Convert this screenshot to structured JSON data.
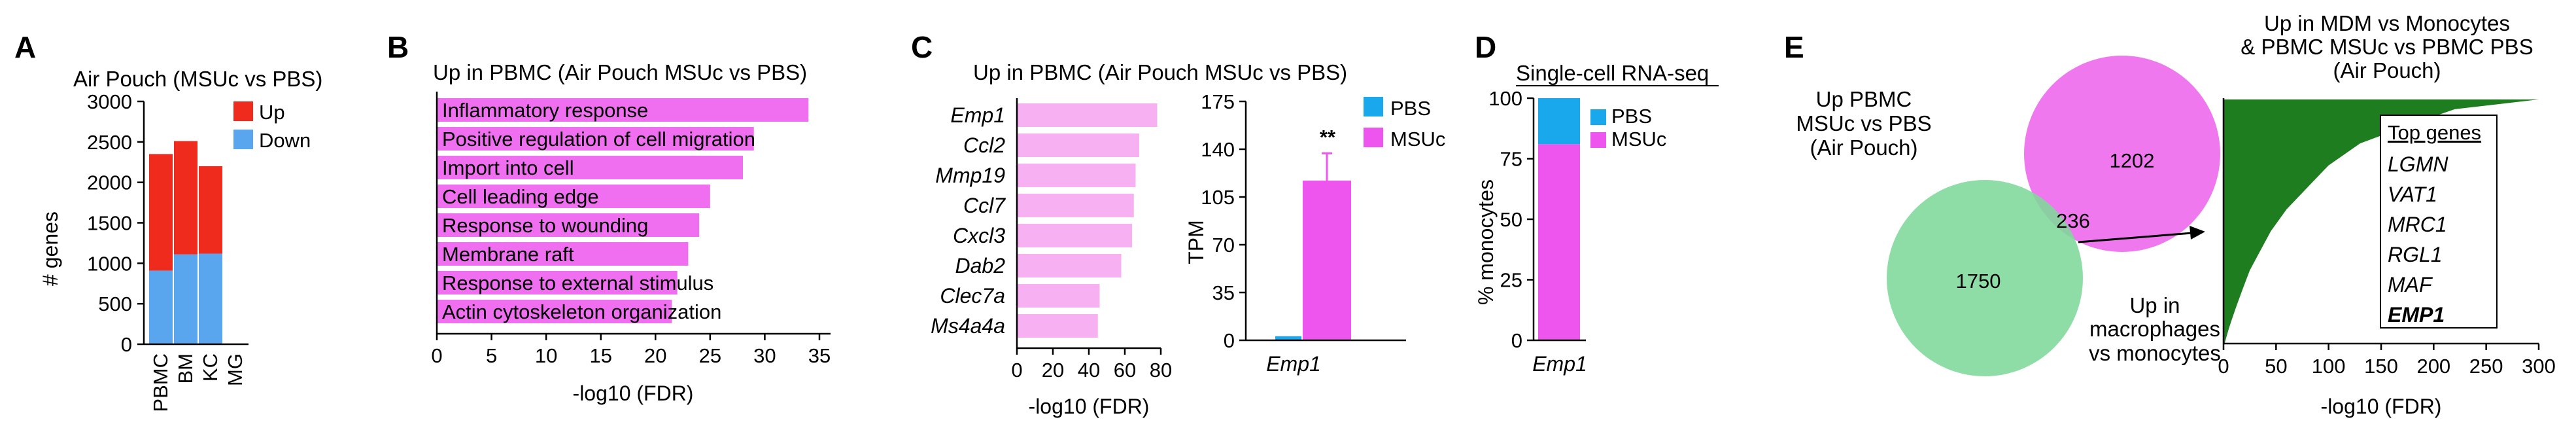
{
  "colors": {
    "up": "#ef2b1e",
    "down": "#5aa6ee",
    "go_bar": "#f06ef0",
    "gene_bar": "#f7b1f2",
    "pbs": "#1aa8ec",
    "msuc": "#ee55ee",
    "venn_green": "#7fd89a",
    "venn_pink": "#ef78ef",
    "area_green": "#1e7d1e"
  },
  "panels": {
    "A": {
      "letter": "A",
      "chart_data": {
        "type": "bar",
        "stacked": true,
        "title": "Air Pouch (MSUc vs PBS)",
        "ylabel": "# genes",
        "xlabel": "",
        "categories": [
          "PBMC",
          "BM",
          "KC",
          "MG"
        ],
        "series": [
          {
            "name": "Down",
            "values": [
              910,
              1110,
              1120,
              0
            ]
          },
          {
            "name": "Up",
            "values": [
              1440,
              1400,
              1080,
              0
            ]
          }
        ],
        "ylim": [
          0,
          3000
        ],
        "yticks": [
          "0",
          "500",
          "1000",
          "1500",
          "2000",
          "2500",
          "3000"
        ],
        "legend": [
          "Up",
          "Down"
        ]
      }
    },
    "B": {
      "letter": "B",
      "chart_data": {
        "type": "bar",
        "orientation": "horizontal",
        "title": "Up in PBMC (Air Pouch MSUc vs PBS)",
        "xlabel": "-log10 (FDR)",
        "categories": [
          "Inflammatory response",
          "Positive regulation of cell migration",
          "Import into cell",
          "Cell leading edge",
          "Response to wounding",
          "Membrane raft",
          "Response to external stimulus",
          "Actin cytoskeleton organization"
        ],
        "values": [
          34,
          29,
          28,
          25,
          24,
          23,
          22,
          21.5
        ],
        "xlim": [
          0,
          35
        ],
        "xticks": [
          "0",
          "5",
          "10",
          "15",
          "20",
          "25",
          "30",
          "35"
        ]
      }
    },
    "C": {
      "letter": "C",
      "title": "Up in PBMC (Air Pouch MSUc vs PBS)",
      "chart_data": [
        {
          "type": "bar",
          "orientation": "horizontal",
          "xlabel": "-log10 (FDR)",
          "categories": [
            "Emp1",
            "Ccl2",
            "Mmp19",
            "Ccl7",
            "Cxcl3",
            "Dab2",
            "Clec7a",
            "Ms4a4a"
          ],
          "values": [
            78,
            68,
            66,
            65,
            64,
            58,
            46,
            45
          ],
          "xlim": [
            0,
            80
          ],
          "xticks": [
            "0",
            "20",
            "40",
            "60",
            "80"
          ]
        },
        {
          "type": "bar",
          "ylabel": "TPM",
          "categories": [
            "Emp1"
          ],
          "series": [
            {
              "name": "PBS",
              "values": [
                3
              ]
            },
            {
              "name": "MSUc",
              "values": [
                117
              ],
              "error": 20
            }
          ],
          "ylim": [
            0,
            175
          ],
          "yticks": [
            "0",
            "35",
            "70",
            "105",
            "140",
            "175"
          ],
          "annotation": "**"
        }
      ]
    },
    "D": {
      "letter": "D",
      "chart_data": {
        "type": "bar",
        "stacked": true,
        "title": "Single-cell RNA-seq",
        "ylabel": "% monocytes",
        "categories": [
          "Emp1"
        ],
        "series": [
          {
            "name": "MSUc",
            "values": [
              81
            ]
          },
          {
            "name": "PBS",
            "values": [
              19
            ]
          }
        ],
        "ylim": [
          0,
          100
        ],
        "yticks": [
          "0",
          "25",
          "50",
          "75",
          "100"
        ],
        "legend": [
          "PBS",
          "MSUc"
        ]
      }
    },
    "E": {
      "letter": "E",
      "venn": {
        "left_label_lines": [
          "Up PBMC",
          "MSUc vs PBS",
          "(Air Pouch)"
        ],
        "left_only": "1750",
        "overlap": "236",
        "right_only": "1202",
        "arrow_label_lines": [
          "Up in",
          "macrophages",
          "vs monocytes"
        ]
      },
      "chart_data": {
        "type": "area",
        "title_lines": [
          "Up in MDM vs Monocytes",
          "& PBMC MSUc vs PBMC PBS",
          "(Air Pouch)"
        ],
        "xlabel": "-log10 (FDR)",
        "x": [
          300,
          220,
          180,
          130,
          100,
          80,
          60,
          45,
          35,
          25,
          18,
          12,
          8,
          5,
          3,
          1
        ],
        "y_fraction": [
          0.0,
          0.04,
          0.1,
          0.18,
          0.27,
          0.36,
          0.45,
          0.54,
          0.62,
          0.7,
          0.78,
          0.85,
          0.9,
          0.94,
          0.97,
          1.0
        ],
        "xlim": [
          0,
          300
        ],
        "xticks": [
          "0",
          "50",
          "100",
          "150",
          "200",
          "250",
          "300"
        ],
        "top_genes_title": "Top genes",
        "top_genes": [
          "LGMN",
          "VAT1",
          "MRC1",
          "RGL1",
          "MAF",
          "EMP1"
        ]
      }
    }
  }
}
